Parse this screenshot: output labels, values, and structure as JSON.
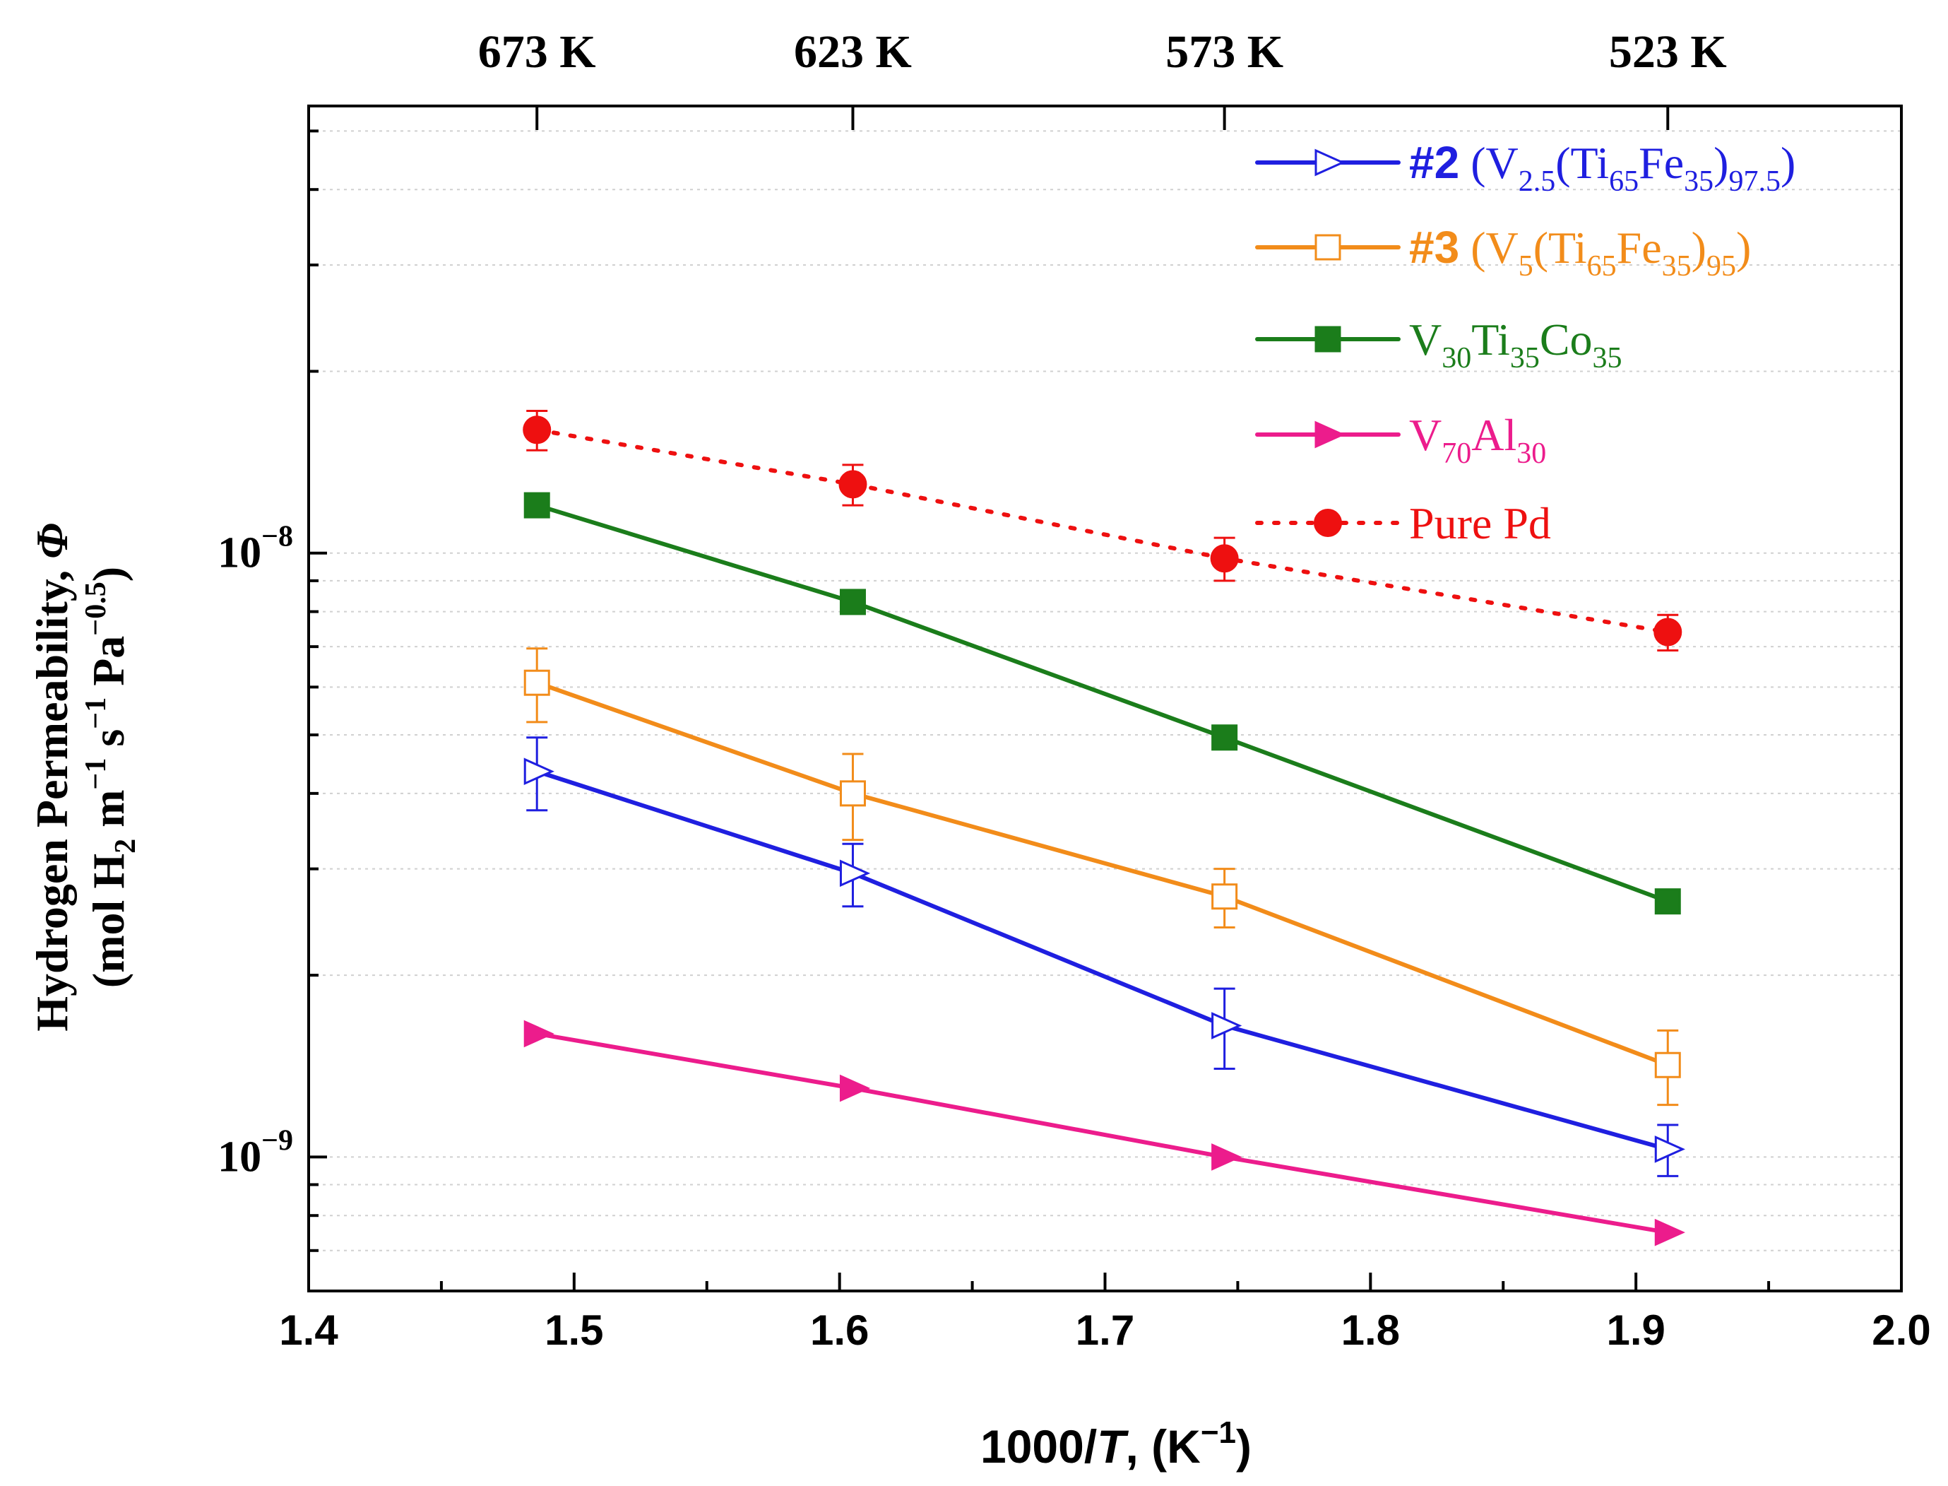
{
  "chart_data": {
    "type": "line",
    "xlabel": {
      "prefix": "1000/",
      "var": "T",
      "mid": ", (K",
      "sup": "−1",
      "suffix": ")"
    },
    "ylabel": {
      "line1": "Hydrogen Permeability, ",
      "line1_sym": "Φ",
      "line2_a": "(mol H",
      "line2_sub": "2",
      "line2_b": " m",
      "line2_sup1": "−1",
      "line2_c": " s",
      "line2_sup2": "−1",
      "line2_d": " Pa",
      "line2_sup3": "−0.5",
      "line2_e": ")"
    },
    "xlim": [
      1.4,
      2.0
    ],
    "ylim": [
      6e-10,
      5.5e-08
    ],
    "yscale": "log",
    "x_ticks": [
      "1.4",
      "1.5",
      "1.6",
      "1.7",
      "1.8",
      "1.9",
      "2.0"
    ],
    "x_tick_values": [
      1.4,
      1.5,
      1.6,
      1.7,
      1.8,
      1.9,
      2.0
    ],
    "y_ticks": [
      {
        "base": "10",
        "exp": "−9",
        "value": 1e-09
      },
      {
        "base": "10",
        "exp": "−8",
        "value": 1e-08
      }
    ],
    "top_axis_ticks": [
      {
        "label": "673 K",
        "x": 1.486
      },
      {
        "label": "623 K",
        "x": 1.605
      },
      {
        "label": "573 K",
        "x": 1.745
      },
      {
        "label": "523 K",
        "x": 1.912
      }
    ],
    "grid": "horizontal dotted at log positions",
    "legend_position": "top-right",
    "series": [
      {
        "name": "#2 (V2.5(Ti65Fe35)97.5)",
        "color": "#1f1fe0",
        "marker": "open-right-triangle",
        "x": [
          1.486,
          1.605,
          1.745,
          1.912
        ],
        "y": [
          4.35e-09,
          2.95e-09,
          1.65e-09,
          1.03e-09
        ],
        "err": [
          6e-10,
          3.5e-10,
          2.5e-10,
          1e-10
        ]
      },
      {
        "name": "#3 (V5(Ti65Fe35)95)",
        "color": "#f28c1a",
        "marker": "open-square",
        "x": [
          1.486,
          1.605,
          1.745,
          1.912
        ],
        "y": [
          6.1e-09,
          4e-09,
          2.7e-09,
          1.42e-09
        ],
        "err": [
          8.5e-10,
          6.5e-10,
          3e-10,
          2e-10
        ]
      },
      {
        "name": "V30Ti35Co35",
        "color": "#1b7d1b",
        "marker": "filled-square",
        "x": [
          1.486,
          1.605,
          1.745,
          1.912
        ],
        "y": [
          1.2e-08,
          8.3e-09,
          4.95e-09,
          2.65e-09
        ],
        "err": [
          0,
          0,
          0,
          0
        ]
      },
      {
        "name": "V70Al30",
        "color": "#ec1c8c",
        "marker": "filled-right-triangle",
        "x": [
          1.486,
          1.605,
          1.745,
          1.912
        ],
        "y": [
          1.6e-09,
          1.3e-09,
          1e-09,
          7.5e-10
        ],
        "err": [
          0,
          0,
          0,
          0
        ]
      },
      {
        "name": "Pure Pd",
        "color": "#ee1010",
        "marker": "filled-circle",
        "line": "dotted",
        "x": [
          1.486,
          1.605,
          1.745,
          1.912
        ],
        "y": [
          1.6e-08,
          1.3e-08,
          9.8e-09,
          7.4e-09
        ],
        "err": [
          1.2e-09,
          1e-09,
          8e-10,
          5e-10
        ]
      }
    ],
    "legend": [
      {
        "prefix": "#2",
        "parts": [
          {
            "t": " (V"
          },
          {
            "sub": "2.5"
          },
          {
            "t": "(Ti"
          },
          {
            "sub": "65"
          },
          {
            "t": "Fe"
          },
          {
            "sub": "35"
          },
          {
            "t": ")"
          },
          {
            "sub": "97.5"
          },
          {
            "t": ")"
          }
        ]
      },
      {
        "prefix": "#3",
        "parts": [
          {
            "t": " (V"
          },
          {
            "sub": "5"
          },
          {
            "t": "(Ti"
          },
          {
            "sub": "65"
          },
          {
            "t": "Fe"
          },
          {
            "sub": "35"
          },
          {
            "t": ")"
          },
          {
            "sub": "95"
          },
          {
            "t": ")"
          }
        ]
      },
      {
        "prefix": "",
        "parts": [
          {
            "t": "V"
          },
          {
            "sub": "30"
          },
          {
            "t": "Ti"
          },
          {
            "sub": "35"
          },
          {
            "t": "Co"
          },
          {
            "sub": "35"
          }
        ]
      },
      {
        "prefix": "",
        "parts": [
          {
            "t": "V"
          },
          {
            "sub": "70"
          },
          {
            "t": "Al"
          },
          {
            "sub": "30"
          }
        ]
      },
      {
        "prefix": "",
        "parts": [
          {
            "t": "Pure Pd"
          }
        ]
      }
    ]
  }
}
